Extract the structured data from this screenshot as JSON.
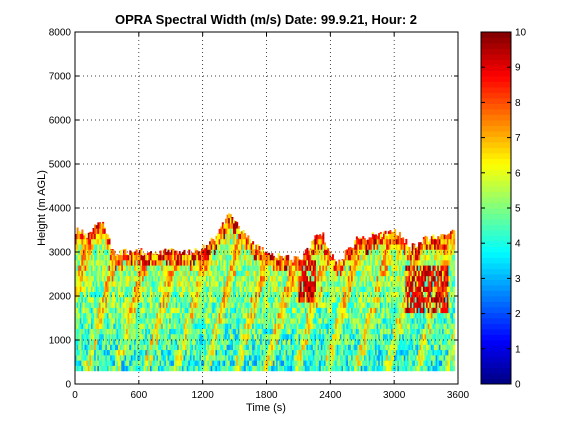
{
  "chart_data": {
    "type": "heatmap",
    "title": "OPRA Spectral Width (m/s)  Date: 99.9.21, Hour: 2",
    "xlabel": "Time (s)",
    "ylabel": "Height (m AGL)",
    "xlim": [
      0,
      3600
    ],
    "ylim": [
      0,
      8000
    ],
    "xticks": [
      0,
      600,
      1200,
      1800,
      2400,
      3000,
      3600
    ],
    "xtick_labels": [
      "0",
      "600",
      "1200",
      "1800",
      "2400",
      "3000",
      "3600"
    ],
    "yticks": [
      0,
      1000,
      2000,
      3000,
      4000,
      5000,
      6000,
      7000,
      8000
    ],
    "ytick_labels": [
      "0",
      "1000",
      "2000",
      "3000",
      "4000",
      "5000",
      "6000",
      "7000",
      "8000"
    ],
    "grid": true,
    "colormap": "jet",
    "colorbar": {
      "range": [
        0,
        10
      ],
      "ticks": [
        0,
        1,
        2,
        3,
        4,
        5,
        6,
        7,
        8,
        9,
        10
      ],
      "tick_labels": [
        "0",
        "1",
        "2",
        "3",
        "4",
        "5",
        "6",
        "7",
        "8",
        "9",
        "10"
      ]
    },
    "data_extent": {
      "height_min_m": 300,
      "echo_top_m": [
        [
          0,
          3500
        ],
        [
          100,
          3400
        ],
        [
          250,
          3700
        ],
        [
          350,
          3000
        ],
        [
          500,
          3000
        ],
        [
          700,
          3000
        ],
        [
          900,
          3000
        ],
        [
          1150,
          3000
        ],
        [
          1300,
          3300
        ],
        [
          1430,
          3850
        ],
        [
          1550,
          3500
        ],
        [
          1700,
          3100
        ],
        [
          1900,
          2900
        ],
        [
          2100,
          2800
        ],
        [
          2300,
          3500
        ],
        [
          2450,
          2700
        ],
        [
          2650,
          3300
        ],
        [
          2850,
          3400
        ],
        [
          3000,
          3500
        ],
        [
          3150,
          3100
        ],
        [
          3300,
          3300
        ],
        [
          3450,
          3400
        ],
        [
          3560,
          3450
        ]
      ]
    },
    "value_summary": {
      "typical_range": [
        2.5,
        5.5
      ],
      "top_layer_values": [
        6,
        10
      ],
      "high_value_patches": [
        {
          "time_s": [
            2100,
            2250
          ],
          "height_m": [
            1800,
            2800
          ],
          "value": [
            8,
            10
          ]
        },
        {
          "time_s": [
            3100,
            3500
          ],
          "height_m": [
            1600,
            2600
          ],
          "value": [
            8,
            10
          ]
        }
      ]
    }
  }
}
